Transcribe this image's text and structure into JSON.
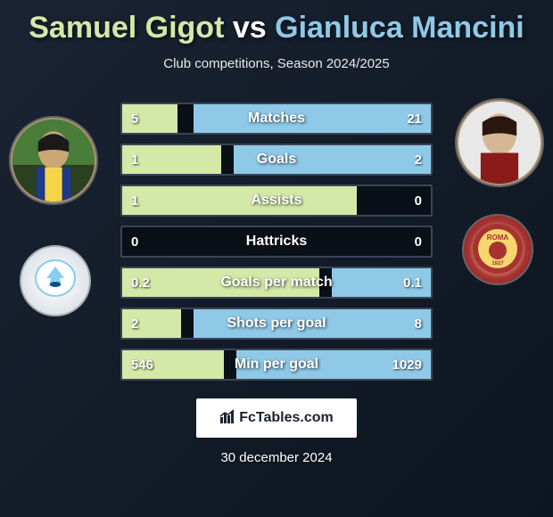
{
  "title": {
    "player1": "Samuel Gigot",
    "vs": "vs",
    "player2": "Gianluca Mancini"
  },
  "subtitle": "Club competitions, Season 2024/2025",
  "player1": {
    "club": "Lazio",
    "club_color": "#87ceeb"
  },
  "player2": {
    "club": "Roma",
    "club_color": "#a83232"
  },
  "stats": [
    {
      "label": "Matches",
      "value1": "5",
      "value2": "21",
      "bar1_width": 18,
      "bar2_width": 77
    },
    {
      "label": "Goals",
      "value1": "1",
      "value2": "2",
      "bar1_width": 32,
      "bar2_width": 64
    },
    {
      "label": "Assists",
      "value1": "1",
      "value2": "0",
      "bar1_width": 76,
      "bar2_width": 0
    },
    {
      "label": "Hattricks",
      "value1": "0",
      "value2": "0",
      "bar1_width": 0,
      "bar2_width": 0
    },
    {
      "label": "Goals per match",
      "value1": "0.2",
      "value2": "0.1",
      "bar1_width": 64,
      "bar2_width": 32
    },
    {
      "label": "Shots per goal",
      "value1": "2",
      "value2": "8",
      "bar1_width": 19,
      "bar2_width": 77
    },
    {
      "label": "Min per goal",
      "value1": "546",
      "value2": "1029",
      "bar1_width": 33,
      "bar2_width": 63
    }
  ],
  "footer": {
    "site": "FcTables.com",
    "date": "30 december 2024"
  },
  "colors": {
    "player1_highlight": "#d4e8a8",
    "player2_highlight": "#8fc9e8",
    "background_dark": "#0d1520",
    "text_white": "#ffffff"
  }
}
